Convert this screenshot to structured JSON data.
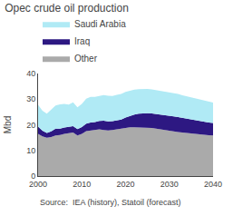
{
  "chart_data": {
    "type": "area",
    "stacked": true,
    "title": "Opec crude oil production",
    "ylabel": "Mbd",
    "annotations": [
      "Source:  IEA (history), Statoil (forecast)"
    ],
    "x": [
      2000,
      2001,
      2002,
      2003,
      2004,
      2005,
      2006,
      2007,
      2008,
      2009,
      2010,
      2011,
      2012,
      2013,
      2014,
      2015,
      2016,
      2017,
      2018,
      2019,
      2020,
      2021,
      2022,
      2023,
      2024,
      2025,
      2026,
      2027,
      2028,
      2029,
      2030,
      2031,
      2032,
      2033,
      2034,
      2035,
      2036,
      2037,
      2038,
      2039,
      2040
    ],
    "series": [
      {
        "name": "Other",
        "color": "#aaaaaa",
        "values": [
          16.5,
          15.5,
          15.0,
          15.2,
          15.8,
          16.0,
          16.5,
          16.8,
          17.0,
          15.8,
          16.5,
          17.5,
          17.8,
          18.0,
          18.2,
          18.0,
          17.8,
          18.0,
          18.3,
          18.5,
          18.8,
          19.0,
          19.0,
          19.0,
          19.0,
          19.0,
          18.8,
          18.5,
          18.2,
          18.0,
          17.8,
          17.5,
          17.2,
          17.0,
          16.8,
          16.5,
          16.3,
          16.1,
          16.0,
          15.9,
          15.8
        ]
      },
      {
        "name": "Iraq",
        "color": "#2d1882",
        "values": [
          2.8,
          2.2,
          1.8,
          2.2,
          2.7,
          2.5,
          2.4,
          2.3,
          2.5,
          2.5,
          2.6,
          2.9,
          3.1,
          3.1,
          3.3,
          3.6,
          3.5,
          3.4,
          3.4,
          3.5,
          4.0,
          4.5,
          5.0,
          5.3,
          5.5,
          5.5,
          5.6,
          5.7,
          5.8,
          5.9,
          5.9,
          5.8,
          5.8,
          5.7,
          5.6,
          5.5,
          5.3,
          5.2,
          5.1,
          5.0,
          4.9
        ]
      },
      {
        "name": "Saudi Arabia",
        "color": "#b0eaf5",
        "values": [
          8.5,
          7.8,
          7.5,
          8.5,
          9.0,
          9.5,
          9.2,
          8.8,
          9.3,
          8.5,
          9.0,
          9.8,
          10.0,
          9.8,
          9.8,
          10.0,
          10.0,
          9.8,
          10.0,
          10.0,
          10.0,
          9.8,
          9.7,
          9.6,
          9.5,
          9.5,
          9.4,
          9.3,
          9.2,
          9.1,
          9.0,
          9.0,
          9.0,
          8.8,
          8.7,
          8.5,
          8.5,
          8.4,
          8.3,
          8.2,
          8.0
        ]
      }
    ],
    "xlim": [
      2000,
      2040
    ],
    "xticks": [
      2000,
      2010,
      2020,
      2030,
      2040
    ],
    "ylim": [
      0,
      40
    ],
    "yticks": [
      0,
      10,
      20,
      30,
      40
    ],
    "grid": false,
    "legend": "top"
  }
}
